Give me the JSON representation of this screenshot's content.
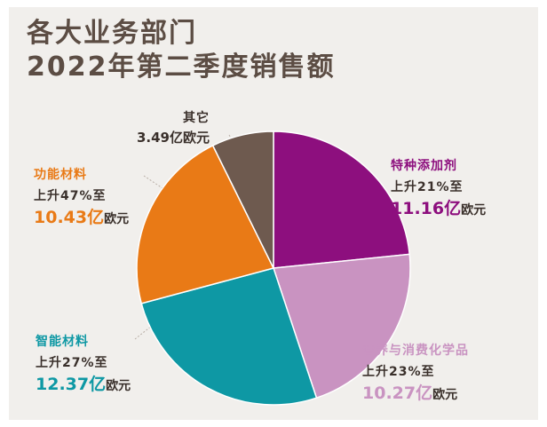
{
  "title": {
    "line1": "各大业务部门",
    "line2": "2022年第二季度销售额"
  },
  "colors": {
    "background": "#f1efec",
    "title": "#5c4d44",
    "others": "#6e5a4f",
    "functional": "#e97a16",
    "smart": "#0e98a4",
    "nutrition": "#c993c1",
    "additives": "#8d0f7e"
  },
  "segments": [
    {
      "id": "additives",
      "name": "特种添加剂",
      "change": "上升21%至",
      "amount": "11.16亿",
      "unit": "欧元",
      "color": "#8d0f7e",
      "name_color": "#8d0f7e",
      "amount_color": "#8d0f7e"
    },
    {
      "id": "nutrition",
      "name": "营养与消费化学品",
      "change": "上升23%至",
      "amount": "10.27亿",
      "unit": "欧元",
      "color": "#c993c1",
      "name_color": "#c993c1",
      "amount_color": "#c993c1"
    },
    {
      "id": "smart",
      "name": "智能材料",
      "change": "上升27%至",
      "amount": "12.37亿",
      "unit": "欧元",
      "color": "#0e98a4",
      "name_color": "#0e98a4",
      "amount_color": "#0e98a4"
    },
    {
      "id": "functional",
      "name": "功能材料",
      "change": "上升47%至",
      "amount": "10.43亿",
      "unit": "欧元",
      "color": "#e97a16",
      "name_color": "#e97a16",
      "amount_color": "#e97a16"
    },
    {
      "id": "others",
      "name": "其它",
      "value_text": "3.49亿欧元",
      "color": "#6e5a4f",
      "name_color": "#3a302b"
    }
  ],
  "chart_data": {
    "type": "pie",
    "title": "各大业务部门 2022年第二季度销售额",
    "unit": "亿欧元",
    "start": "12 o'clock, clockwise",
    "categories": [
      "特种添加剂",
      "营养与消费化学品",
      "智能材料",
      "功能材料",
      "其它"
    ],
    "values": [
      11.16,
      10.27,
      12.37,
      10.43,
      3.49
    ],
    "colors": [
      "#8d0f7e",
      "#c993c1",
      "#0e98a4",
      "#e97a16",
      "#6e5a4f"
    ]
  }
}
